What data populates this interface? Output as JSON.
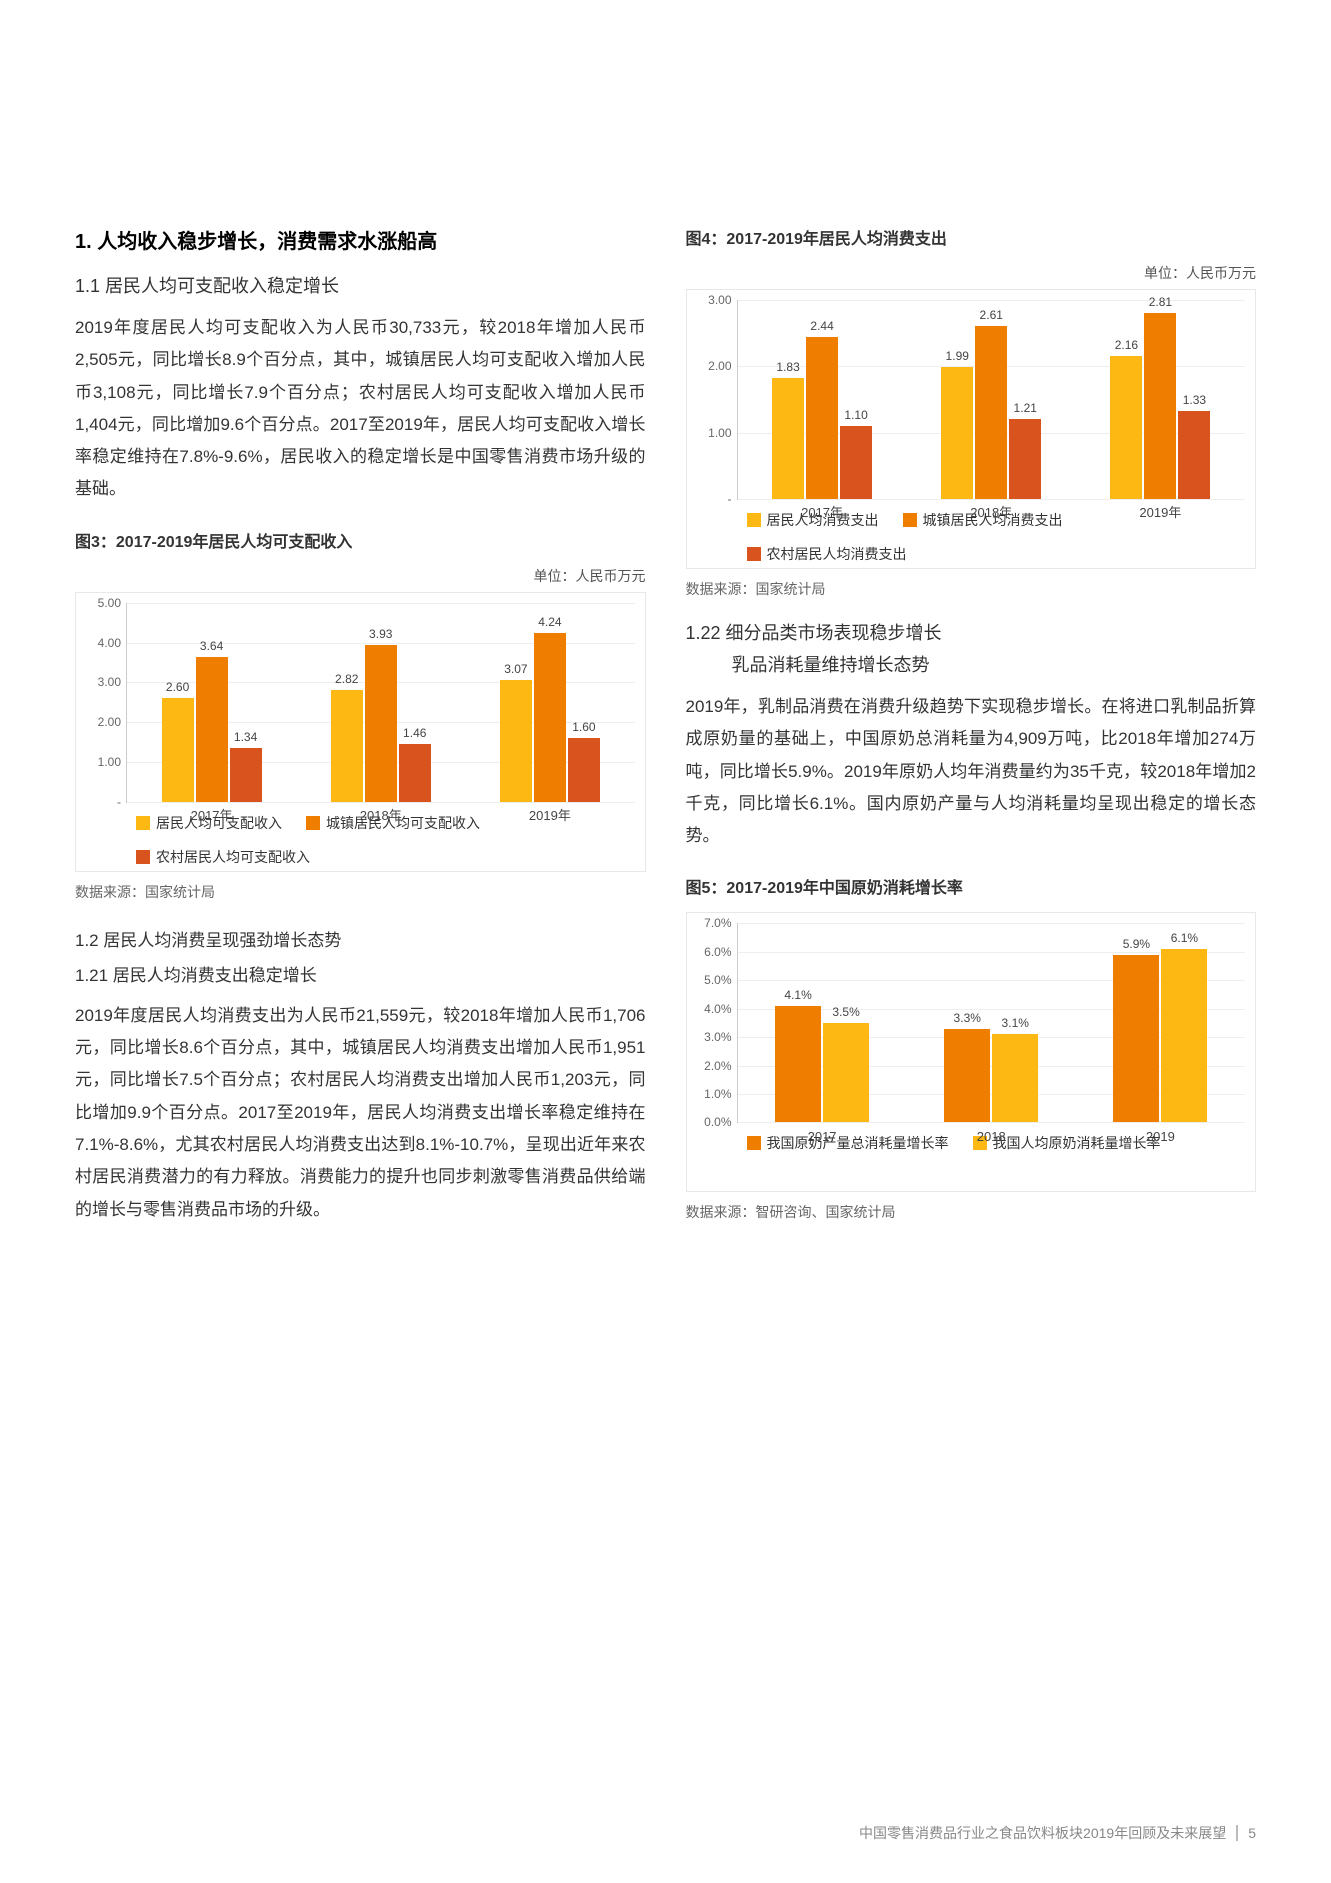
{
  "colLeft": {
    "section1": {
      "title": "1. 人均收入稳步增长，消费需求水涨船高",
      "sub": "1.1 居民人均可支配收入稳定增长",
      "para": "2019年度居民人均可支配收入为人民币30,733元，较2018年增加人民币2,505元，同比增长8.9个百分点，其中，城镇居民人均可支配收入增加人民币3,108元，同比增长7.9个百分点；农村居民人均可支配收入增加人民币1,404元，同比增加9.6个百分点。2017至2019年，居民人均可支配收入增长率稳定维持在7.8%-9.6%，居民收入的稳定增长是中国零售消费市场升级的基础。"
    },
    "chart3": {
      "title": "图3：2017-2019年居民人均可支配收入",
      "unit": "单位：人民币万元",
      "ylim": [
        0,
        5
      ],
      "ystep": 1,
      "yTickFmt": "fixed2",
      "categories": [
        "2017年",
        "2018年",
        "2019年"
      ],
      "series": [
        {
          "label": "居民人均可支配收入",
          "color": "#fdb813",
          "values": [
            2.6,
            2.82,
            3.07
          ]
        },
        {
          "label": "城镇居民人均可支配收入",
          "color": "#ef7d00",
          "values": [
            3.64,
            3.93,
            4.24
          ]
        },
        {
          "label": "农村居民人均可支配收入",
          "color": "#d9531e",
          "values": [
            1.34,
            1.46,
            1.6
          ]
        }
      ],
      "source": "数据来源：国家统计局"
    },
    "section12": {
      "title": "1.2 居民人均消费呈现强劲增长态势",
      "sub": "1.21 居民人均消费支出稳定增长",
      "para": "2019年度居民人均消费支出为人民币21,559元，较2018年增加人民币1,706元，同比增长8.6个百分点，其中，城镇居民人均消费支出增加人民币1,951元，同比增长7.5个百分点；农村居民人均消费支出增加人民币1,203元，同比增加9.9个百分点。2017至2019年，居民人均消费支出增长率稳定维持在7.1%-8.6%，尤其农村居民人均消费支出达到8.1%-10.7%，呈现出近年来农村居民消费潜力的有力释放。消费能力的提升也同步刺激零售消费品供给端的增长与零售消费品市场的升级。"
    }
  },
  "colRight": {
    "chart4": {
      "title": "图4：2017-2019年居民人均消费支出",
      "unit": "单位：人民币万元",
      "ylim": [
        0,
        3
      ],
      "ystep": 1,
      "yTickFmt": "fixed2",
      "categories": [
        "2017年",
        "2018年",
        "2019年"
      ],
      "series": [
        {
          "label": "居民人均消费支出",
          "color": "#fdb813",
          "values": [
            1.83,
            1.99,
            2.16
          ]
        },
        {
          "label": "城镇居民人均消费支出",
          "color": "#ef7d00",
          "values": [
            2.44,
            2.61,
            2.81
          ]
        },
        {
          "label": "农村居民人均消费支出",
          "color": "#d9531e",
          "values": [
            1.1,
            1.21,
            1.33
          ]
        }
      ],
      "source": "数据来源：国家统计局"
    },
    "section122": {
      "title1": "1.22 细分品类市场表现稳步增长",
      "title2": "乳品消耗量维持增长态势",
      "para": "2019年，乳制品消费在消费升级趋势下实现稳步增长。在将进口乳制品折算成原奶量的基础上，中国原奶总消耗量为4,909万吨，比2018年增加274万吨，同比增长5.9%。2019年原奶人均年消费量约为35千克，较2018年增加2千克，同比增长6.1%。国内原奶产量与人均消耗量均呈现出稳定的增长态势。"
    },
    "chart5": {
      "title": "图5：2017-2019年中国原奶消耗增长率",
      "ylim": [
        0,
        7
      ],
      "ystep": 1,
      "yTickFmt": "pct1",
      "categories": [
        "2017",
        "2018",
        "2019"
      ],
      "series": [
        {
          "label": "我国原奶产量总消耗量增长率",
          "color": "#ef7d00",
          "values": [
            4.1,
            3.3,
            5.9
          ]
        },
        {
          "label": "我国人均原奶消耗量增长率",
          "color": "#fdb813",
          "values": [
            3.5,
            3.1,
            6.1
          ]
        }
      ],
      "source": "数据来源：智研咨询、国家统计局"
    }
  },
  "footer": {
    "text": "中国零售消费品行业之食品饮料板块2019年回顾及未来展望",
    "page": "5"
  }
}
